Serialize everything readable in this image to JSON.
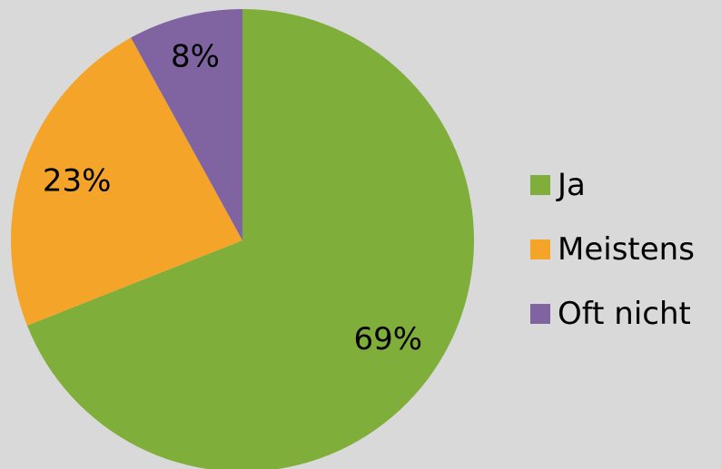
{
  "chart_data": {
    "type": "pie",
    "categories": [
      "Ja",
      "Meistens",
      "Oft nicht"
    ],
    "values": [
      69,
      23,
      8
    ],
    "data_labels": [
      "69%",
      "23%",
      "8%"
    ],
    "colors": [
      "#7fae3a",
      "#f5a42a",
      "#8064a2"
    ],
    "legend_position": "right",
    "start_angle": "top",
    "direction": "clockwise"
  }
}
